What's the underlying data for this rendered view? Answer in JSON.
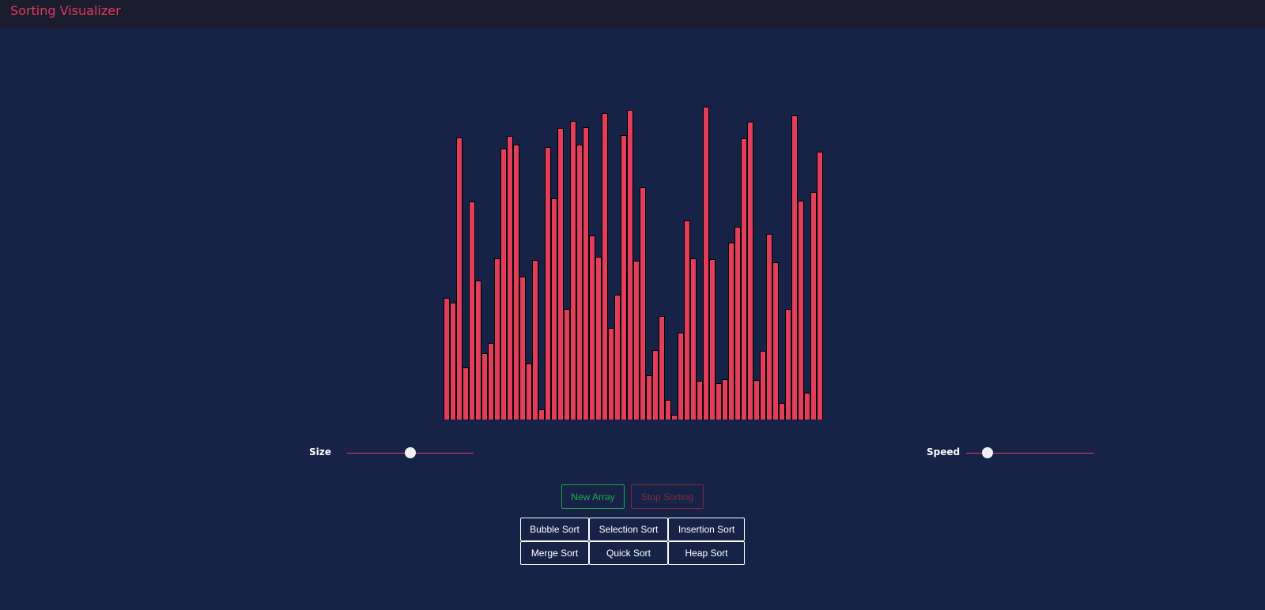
{
  "header": {
    "title": "Sorting Visualizer"
  },
  "colors": {
    "background": "#172346",
    "header_bg": "#1b1c2e",
    "accent": "#e23d5a",
    "new_array": "#22a84c",
    "stop_sorting": "#83283f"
  },
  "chart_data": {
    "type": "bar",
    "title": "",
    "bar_count": 60,
    "values": [
      154,
      148,
      357,
      66,
      276,
      176,
      84,
      97,
      204,
      343,
      359,
      348,
      181,
      71,
      202,
      13,
      345,
      280,
      369,
      140,
      378,
      348,
      370,
      233,
      206,
      388,
      116,
      158,
      360,
      392,
      201,
      294,
      56,
      88,
      131,
      25,
      6,
      110,
      252,
      204,
      49,
      396,
      203,
      46,
      51,
      224,
      244,
      356,
      377,
      50,
      87,
      235,
      199,
      21,
      140,
      385,
      277,
      34,
      288,
      339
    ],
    "xlabel": "",
    "ylabel": "",
    "ylim": [
      0,
      400
    ]
  },
  "controls": {
    "size": {
      "label": "Size",
      "value_pct": 50
    },
    "speed": {
      "label": "Speed",
      "value_pct": 17
    }
  },
  "buttons": {
    "new_array": "New Array",
    "stop_sorting": "Stop Sorting"
  },
  "sorts": [
    "Bubble Sort",
    "Selection Sort",
    "Insertion Sort",
    "Merge Sort",
    "Quick Sort",
    "Heap Sort"
  ]
}
